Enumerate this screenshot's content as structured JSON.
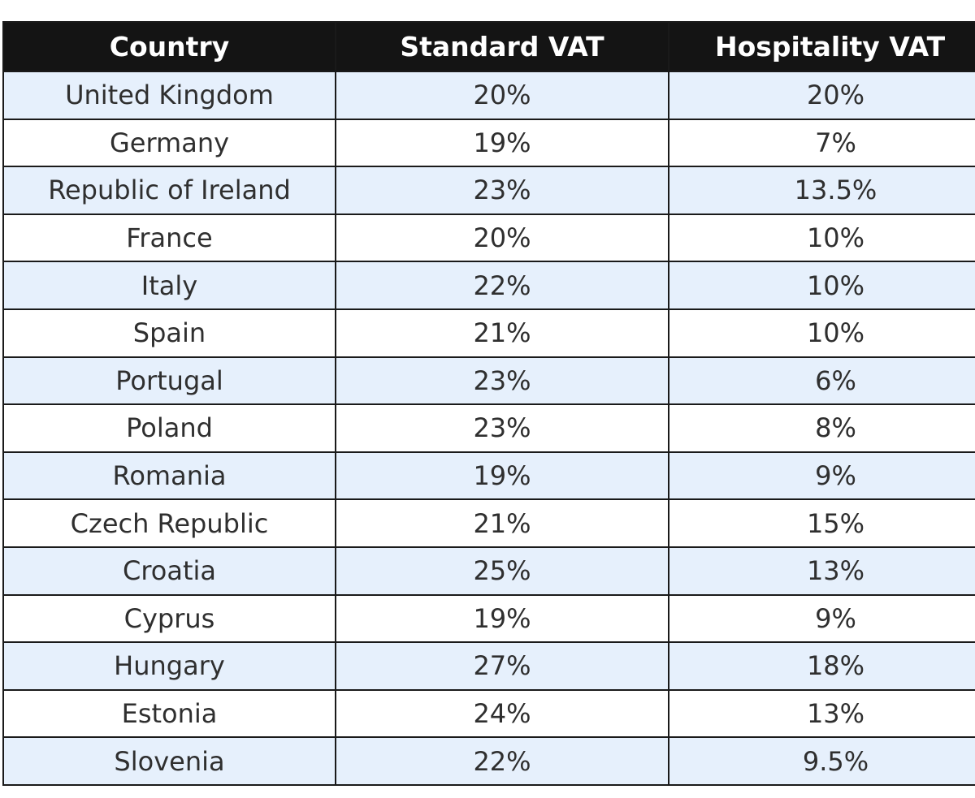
{
  "table": {
    "headers": [
      "Country",
      "Standard VAT",
      "Hospitality VAT"
    ],
    "rows": [
      [
        "United Kingdom",
        "20%",
        "20%"
      ],
      [
        "Germany",
        "19%",
        "7%"
      ],
      [
        "Republic of Ireland",
        "23%",
        "13.5%"
      ],
      [
        "France",
        "20%",
        "10%"
      ],
      [
        "Italy",
        "22%",
        "10%"
      ],
      [
        "Spain",
        "21%",
        "10%"
      ],
      [
        "Portugal",
        "23%",
        "6%"
      ],
      [
        "Poland",
        "23%",
        "8%"
      ],
      [
        "Romania",
        "19%",
        "9%"
      ],
      [
        "Czech Republic",
        "21%",
        "15%"
      ],
      [
        "Croatia",
        "25%",
        "13%"
      ],
      [
        "Cyprus",
        "19%",
        "9%"
      ],
      [
        "Hungary",
        "27%",
        "18%"
      ],
      [
        "Estonia",
        "24%",
        "13%"
      ],
      [
        "Slovenia",
        "22%",
        "9.5%"
      ]
    ]
  },
  "colors": {
    "header_background": "#141414",
    "header_text": "#ffffff",
    "row_stripe": "#e6f0fc",
    "row_plain": "#ffffff",
    "body_text": "#2f2f2f",
    "border": "#1a1a1a"
  }
}
